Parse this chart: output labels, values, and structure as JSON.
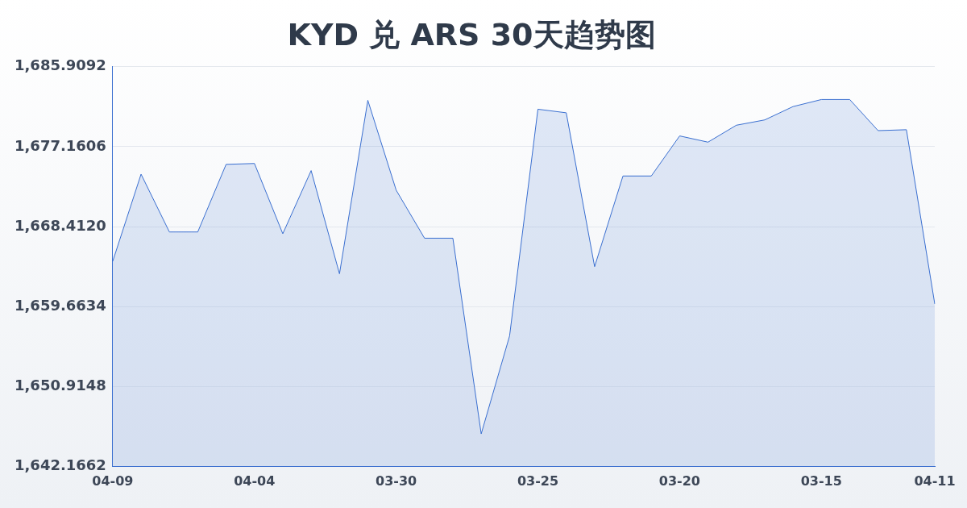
{
  "chart_data": {
    "type": "area",
    "title": "KYD 兑 ARS 30天趋势图",
    "categories": [
      "04-09",
      null,
      null,
      null,
      null,
      "04-04",
      null,
      null,
      null,
      null,
      "03-30",
      null,
      null,
      null,
      null,
      "03-25",
      null,
      null,
      null,
      null,
      "03-20",
      null,
      null,
      null,
      null,
      "03-15",
      null,
      null,
      null,
      "04-11"
    ],
    "series": [
      {
        "color": "#3a6fd0",
        "values": [
          1664.62,
          1674.15,
          1667.83,
          1667.83,
          1675.22,
          1675.32,
          1667.64,
          1674.54,
          1663.26,
          1682.22,
          1672.4,
          1667.15,
          1667.15,
          1645.76,
          1656.46,
          1681.25,
          1680.86,
          1664.04,
          1673.95,
          1673.95,
          1678.33,
          1677.65,
          1679.5,
          1680.08,
          1681.54,
          1682.31,
          1682.31,
          1678.91,
          1679.01,
          1659.96
        ]
      }
    ],
    "ylim": [
      1642.1662,
      1685.9092
    ],
    "yticks": [
      {
        "value": 1642.1662,
        "label": "1,642.1662"
      },
      {
        "value": 1650.9148,
        "label": "1,650.9148"
      },
      {
        "value": 1659.6634,
        "label": "1,659.6634"
      },
      {
        "value": 1668.412,
        "label": "1,668.4120"
      },
      {
        "value": 1677.1606,
        "label": "1,677.1606"
      },
      {
        "value": 1685.9092,
        "label": "1,685.9092"
      }
    ],
    "grid": "y",
    "legend": false,
    "marker": "none"
  }
}
